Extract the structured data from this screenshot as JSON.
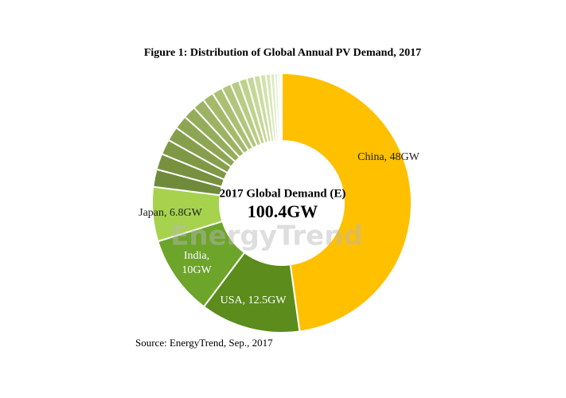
{
  "chart_data": {
    "type": "donut",
    "title": "Figure 1: Distribution of Global Annual PV Demand, 2017",
    "center_title": "2017 Global Demand (E)",
    "center_value_label": "100.4GW",
    "source": "Source: EnergyTrend, Sep., 2017",
    "watermark": "EnergyTrend",
    "values": [
      48,
      12.5,
      10,
      6.8,
      2.2,
      2.0,
      1.9,
      1.8,
      1.7,
      1.6,
      1.5,
      1.4,
      1.3,
      1.2,
      1.1,
      1.0,
      0.9,
      0.8,
      0.7,
      0.6,
      0.5,
      0.4,
      0.3,
      0.2
    ],
    "value_labels": [
      "China, 48GW",
      "USA, 12.5GW",
      [
        "India,",
        "10GW"
      ],
      "Japan, 6.8GW",
      null,
      null,
      null,
      null,
      null,
      null,
      null,
      null,
      null,
      null,
      null,
      null,
      null,
      null,
      null,
      null,
      null,
      null,
      null,
      null
    ],
    "colors": [
      "#ffc000",
      "#5b8c1c",
      "#6da42a",
      "#a6d24e",
      "#6f8a3a",
      "#77913f",
      "#7e9845",
      "#869f4c",
      "#8da653",
      "#95ad5b",
      "#9cb363",
      "#a3ba6b",
      "#aac073",
      "#b1c67c",
      "#b8cc85",
      "#bfd28e",
      "#c5d797",
      "#cbdca1",
      "#d1e1ab",
      "#d7e6b6",
      "#dde9c1",
      "#e3edcc",
      "#e9f1d8",
      "#f0f5e4"
    ]
  }
}
